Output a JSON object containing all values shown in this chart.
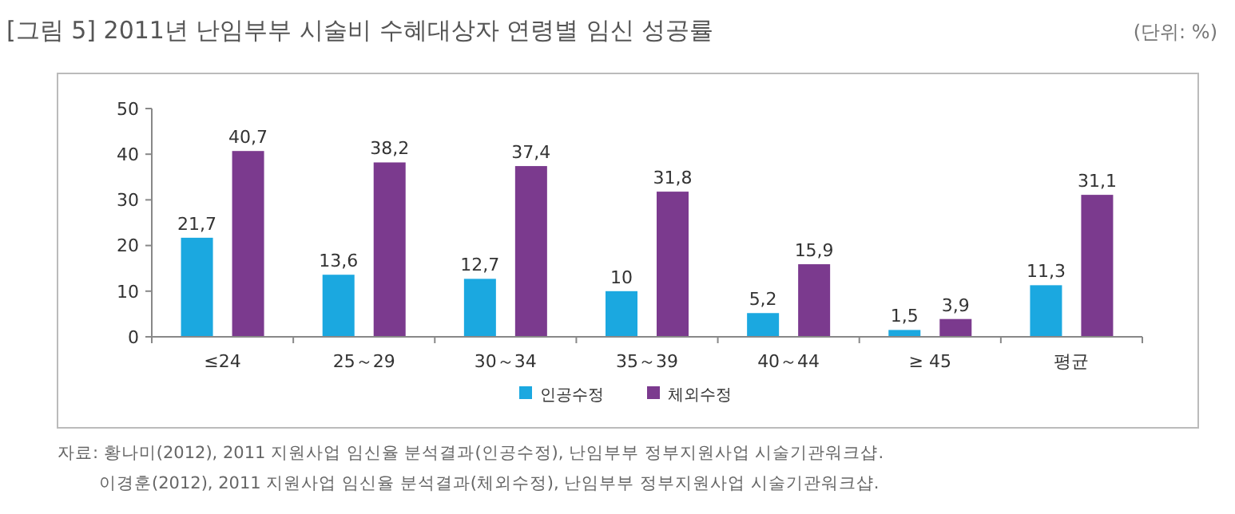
{
  "chart_data": {
    "type": "bar",
    "title": "[그림 5] 2011년 난임부부 시술비 수혜대상자 연령별 임신 성공률",
    "subtitle": "(단위: %)",
    "categories": [
      "≤24",
      "25～29",
      "30～34",
      "35～39",
      "40～44",
      "≥ 45",
      "평균"
    ],
    "series": [
      {
        "name": "인공수정",
        "color": "#1ba8e0",
        "values": [
          21.7,
          13.6,
          12.7,
          10,
          5.2,
          1.5,
          11.3
        ],
        "value_labels": [
          "21,7",
          "13,6",
          "12,7",
          "10",
          "5,2",
          "1,5",
          "11,3"
        ]
      },
      {
        "name": "체외수정",
        "color": "#7b3a8e",
        "values": [
          40.7,
          38.2,
          37.4,
          31.8,
          15.9,
          3.9,
          31.1
        ],
        "value_labels": [
          "40,7",
          "38,2",
          "37,4",
          "31,8",
          "15,9",
          "3,9",
          "31,1"
        ]
      }
    ],
    "ylim": [
      0,
      50
    ],
    "yticks": [
      0,
      10,
      20,
      30,
      40,
      50
    ],
    "grid": false,
    "legend": "bottom",
    "annotations": [
      "자료: 황나미(2012), 2011 지원사업 임신율 분석결과(인공수정), 난임부부 정부지원사업 시술기관워크샵.",
      "이경훈(2012), 2011 지원사업 임신율 분석결과(체외수정), 난임부부 정부지원사업 시술기관워크샵."
    ]
  }
}
